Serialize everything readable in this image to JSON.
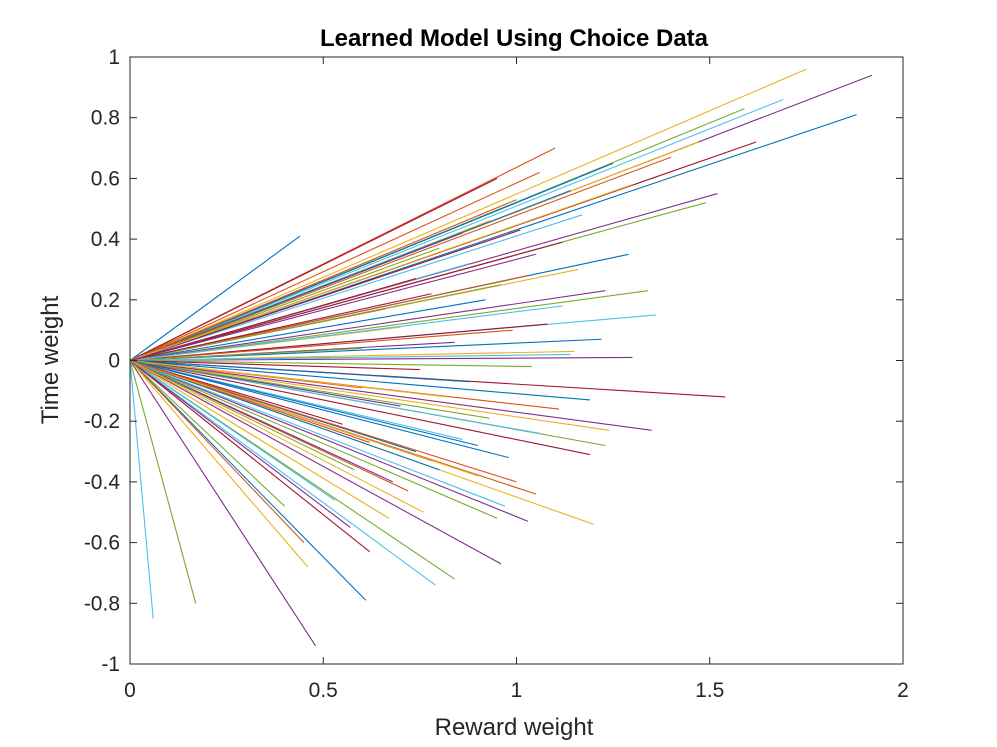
{
  "colors": {
    "axis": "#262626",
    "background": "#ffffff",
    "palette": [
      "#0072BD",
      "#D95319",
      "#EDB120",
      "#7E2F8E",
      "#77AC30",
      "#4DBEEE",
      "#A2142F"
    ]
  },
  "chart_data": {
    "type": "line",
    "title": "Learned Model Using Choice Data",
    "xlabel": "Reward weight",
    "ylabel": "Time weight",
    "xlim": [
      0,
      2
    ],
    "ylim": [
      -1,
      1
    ],
    "grid": false,
    "legend": "none",
    "x_ticks": [
      0,
      0.5,
      1,
      1.5,
      2
    ],
    "x_tick_labels": [
      "0",
      "0.5",
      "1",
      "1.5",
      "2"
    ],
    "y_ticks": [
      -1,
      -0.8,
      -0.6,
      -0.4,
      -0.2,
      0,
      0.2,
      0.4,
      0.6,
      0.8,
      1
    ],
    "y_tick_labels": [
      "-1",
      "-0.8",
      "-0.6",
      "-0.4",
      "-0.2",
      "0",
      "0.2",
      "0.4",
      "0.6",
      "0.8",
      "1"
    ],
    "origin": [
      0,
      0
    ],
    "series": [
      {
        "x": 0.44,
        "y": 0.41
      },
      {
        "x": 1.1,
        "y": 0.7
      },
      {
        "x": 1.75,
        "y": 0.96
      },
      {
        "x": 1.92,
        "y": 0.94
      },
      {
        "x": 1.59,
        "y": 0.83
      },
      {
        "x": 1.69,
        "y": 0.86
      },
      {
        "x": 1.62,
        "y": 0.72
      },
      {
        "x": 1.88,
        "y": 0.81
      },
      {
        "x": 1.06,
        "y": 0.62
      },
      {
        "x": 1.47,
        "y": 0.72
      },
      {
        "x": 1.52,
        "y": 0.55
      },
      {
        "x": 1.49,
        "y": 0.52
      },
      {
        "x": 1.17,
        "y": 0.48
      },
      {
        "x": 1.12,
        "y": 0.39
      },
      {
        "x": 1.29,
        "y": 0.35
      },
      {
        "x": 1.03,
        "y": 0.28
      },
      {
        "x": 1.16,
        "y": 0.3
      },
      {
        "x": 1.23,
        "y": 0.23
      },
      {
        "x": 1.34,
        "y": 0.23
      },
      {
        "x": 1.36,
        "y": 0.15
      },
      {
        "x": 1.08,
        "y": 0.12
      },
      {
        "x": 1.22,
        "y": 0.07
      },
      {
        "x": 0.99,
        "y": 0.1
      },
      {
        "x": 1.15,
        "y": 0.03
      },
      {
        "x": 1.3,
        "y": 0.01
      },
      {
        "x": 1.04,
        "y": -0.02
      },
      {
        "x": 1.14,
        "y": 0.02
      },
      {
        "x": 1.54,
        "y": -0.12
      },
      {
        "x": 1.19,
        "y": -0.13
      },
      {
        "x": 1.11,
        "y": -0.16
      },
      {
        "x": 1.24,
        "y": -0.23
      },
      {
        "x": 1.35,
        "y": -0.23
      },
      {
        "x": 1.23,
        "y": -0.28
      },
      {
        "x": 1.06,
        "y": -0.24
      },
      {
        "x": 1.19,
        "y": -0.31
      },
      {
        "x": 0.98,
        "y": -0.32
      },
      {
        "x": 1.05,
        "y": -0.44
      },
      {
        "x": 1.2,
        "y": -0.54
      },
      {
        "x": 1.03,
        "y": -0.53
      },
      {
        "x": 0.95,
        "y": -0.52
      },
      {
        "x": 0.97,
        "y": -0.48
      },
      {
        "x": 0.78,
        "y": -0.33
      },
      {
        "x": 0.8,
        "y": -0.36
      },
      {
        "x": 0.72,
        "y": -0.43
      },
      {
        "x": 0.67,
        "y": -0.52
      },
      {
        "x": 0.96,
        "y": -0.67
      },
      {
        "x": 0.84,
        "y": -0.72
      },
      {
        "x": 0.79,
        "y": -0.74
      },
      {
        "x": 0.62,
        "y": -0.63
      },
      {
        "x": 0.61,
        "y": -0.79
      },
      {
        "x": 0.45,
        "y": -0.6
      },
      {
        "x": 0.46,
        "y": -0.68
      },
      {
        "x": 0.48,
        "y": -0.94
      },
      {
        "x": 0.17,
        "y": -0.8
      },
      {
        "x": 0.06,
        "y": -0.85
      },
      {
        "x": 0.95,
        "y": 0.6
      },
      {
        "x": 1.25,
        "y": 0.65
      },
      {
        "x": 1.0,
        "y": 0.53
      },
      {
        "x": 0.93,
        "y": 0.46
      },
      {
        "x": 0.86,
        "y": 0.42
      },
      {
        "x": 0.8,
        "y": 0.37
      },
      {
        "x": 0.88,
        "y": 0.32
      },
      {
        "x": 0.74,
        "y": 0.27
      },
      {
        "x": 0.92,
        "y": 0.2
      },
      {
        "x": 0.66,
        "y": 0.17
      },
      {
        "x": 0.7,
        "y": 0.11
      },
      {
        "x": 0.84,
        "y": 0.06
      },
      {
        "x": 0.6,
        "y": 0.04
      },
      {
        "x": 0.52,
        "y": 0.01
      },
      {
        "x": 0.75,
        "y": -0.03
      },
      {
        "x": 0.88,
        "y": -0.07
      },
      {
        "x": 0.6,
        "y": -0.09
      },
      {
        "x": 0.82,
        "y": -0.12
      },
      {
        "x": 0.7,
        "y": -0.15
      },
      {
        "x": 0.93,
        "y": -0.19
      },
      {
        "x": 0.86,
        "y": -0.26
      },
      {
        "x": 0.55,
        "y": -0.21
      },
      {
        "x": 0.74,
        "y": -0.3
      },
      {
        "x": 0.62,
        "y": -0.27
      },
      {
        "x": 0.9,
        "y": -0.38
      },
      {
        "x": 0.68,
        "y": -0.4
      },
      {
        "x": 0.58,
        "y": -0.36
      },
      {
        "x": 0.53,
        "y": -0.46
      },
      {
        "x": 1.01,
        "y": 0.43
      },
      {
        "x": 1.14,
        "y": 0.56
      },
      {
        "x": 1.4,
        "y": 0.67
      },
      {
        "x": 1.3,
        "y": 0.58
      },
      {
        "x": 1.05,
        "y": 0.35
      },
      {
        "x": 0.96,
        "y": 0.25
      },
      {
        "x": 1.12,
        "y": 0.18
      },
      {
        "x": 0.78,
        "y": 0.22
      },
      {
        "x": 0.9,
        "y": -0.28
      },
      {
        "x": 1.0,
        "y": -0.4
      },
      {
        "x": 0.76,
        "y": -0.5
      },
      {
        "x": 0.57,
        "y": -0.55
      },
      {
        "x": 0.4,
        "y": -0.48
      }
    ]
  }
}
